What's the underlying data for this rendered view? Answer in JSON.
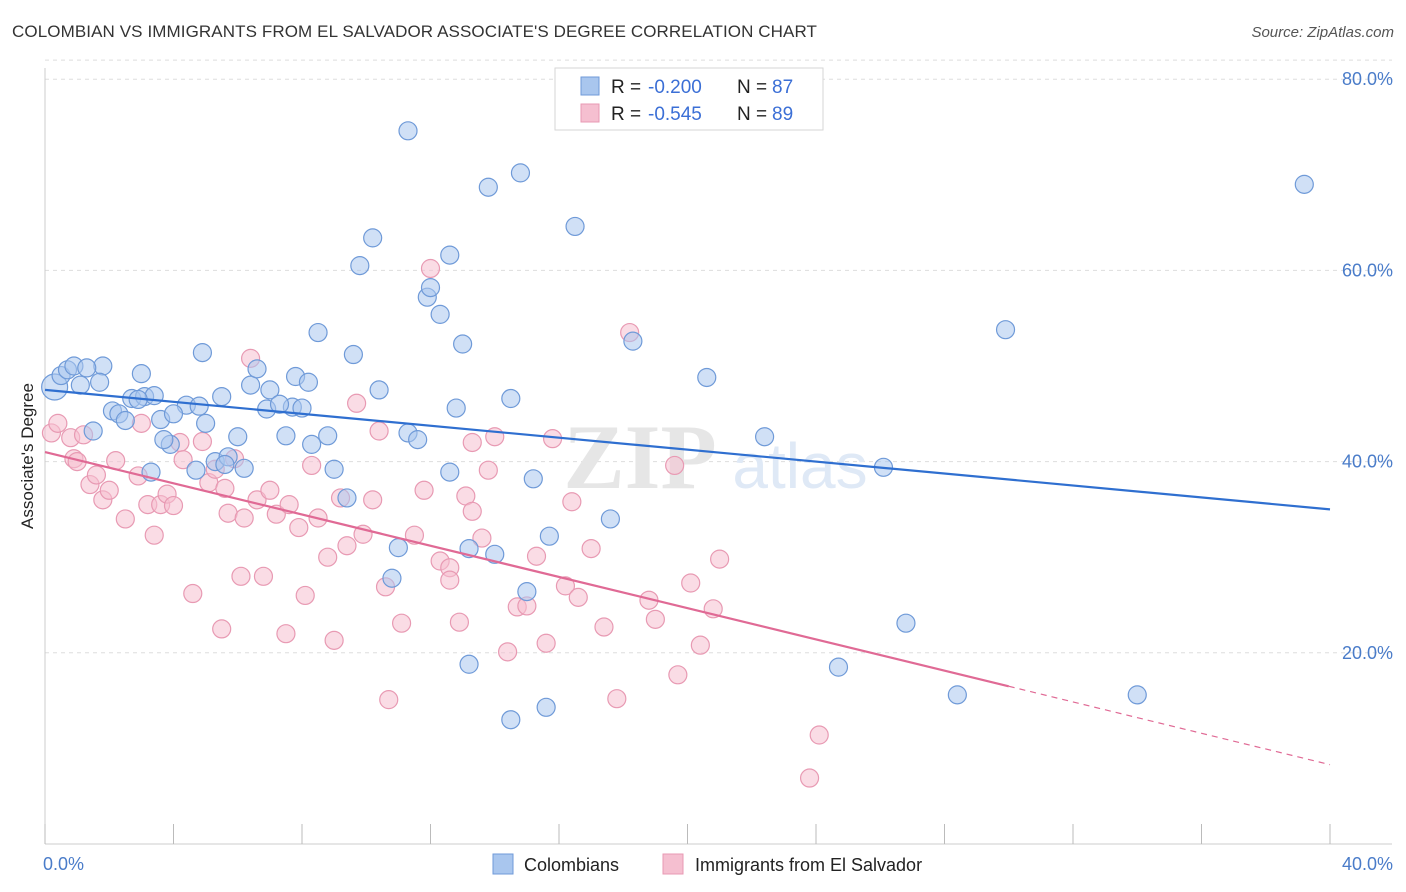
{
  "title": "COLOMBIAN VS IMMIGRANTS FROM EL SALVADOR ASSOCIATE'S DEGREE CORRELATION CHART",
  "source": "Source: ZipAtlas.com",
  "watermark": {
    "zip": "ZIP",
    "atlas": "atlas"
  },
  "colors": {
    "blue_fill": "#a9c6ee",
    "blue_stroke": "#6f9ad8",
    "blue_line": "#2f6fd0",
    "pink_fill": "#f5bfd0",
    "pink_stroke": "#e89ab3",
    "pink_line": "#e06a95",
    "grid": "#dddddd",
    "label": "#4a7cc9"
  },
  "legend_box": {
    "rows": [
      {
        "r_label": "R =",
        "r_value": "-0.200",
        "n_label": "N =",
        "n_value": "87"
      },
      {
        "r_label": "R =",
        "r_value": "-0.545",
        "n_label": "N =",
        "n_value": "89"
      }
    ]
  },
  "chart_data": {
    "type": "scatter",
    "title": "COLOMBIAN VS IMMIGRANTS FROM EL SALVADOR ASSOCIATE'S DEGREE CORRELATION CHART",
    "xlabel": "",
    "ylabel": "Associate's Degree",
    "xlim": [
      0,
      40
    ],
    "ylim": [
      0,
      85
    ],
    "x_tick_labels": [
      "0.0%",
      "40.0%"
    ],
    "y_tick_labels": [
      "20.0%",
      "40.0%",
      "60.0%",
      "80.0%"
    ],
    "y_ticks": [
      20,
      40,
      60,
      80
    ],
    "grid": true,
    "legend_position": "bottom-center",
    "series": [
      {
        "name": "Colombians",
        "r": -0.2,
        "n": 87,
        "trend": {
          "x0": 0,
          "y0": 47.5,
          "x1": 40,
          "y1": 35.0
        },
        "points": [
          [
            0.3,
            47.8
          ],
          [
            0.5,
            49.0
          ],
          [
            0.7,
            49.6
          ],
          [
            0.9,
            50.0
          ],
          [
            1.1,
            48.0
          ],
          [
            1.5,
            43.2
          ],
          [
            1.8,
            50.0
          ],
          [
            1.7,
            48.3
          ],
          [
            2.1,
            45.3
          ],
          [
            2.3,
            45.0
          ],
          [
            2.5,
            44.3
          ],
          [
            2.7,
            46.6
          ],
          [
            3.1,
            46.8
          ],
          [
            3.0,
            49.2
          ],
          [
            3.4,
            46.9
          ],
          [
            3.6,
            44.4
          ],
          [
            3.9,
            41.8
          ],
          [
            4.4,
            45.9
          ],
          [
            4.8,
            45.8
          ],
          [
            4.9,
            51.4
          ],
          [
            4.7,
            39.1
          ],
          [
            3.3,
            38.9
          ],
          [
            3.7,
            42.3
          ],
          [
            5.3,
            40.0
          ],
          [
            5.0,
            44.0
          ],
          [
            6.0,
            42.6
          ],
          [
            6.4,
            48.0
          ],
          [
            6.6,
            49.7
          ],
          [
            6.9,
            45.5
          ],
          [
            7.8,
            48.9
          ],
          [
            7.5,
            42.7
          ],
          [
            8.2,
            48.3
          ],
          [
            7.0,
            47.5
          ],
          [
            5.7,
            40.5
          ],
          [
            5.6,
            39.7
          ],
          [
            5.5,
            46.8
          ],
          [
            7.7,
            45.7
          ],
          [
            8.3,
            41.8
          ],
          [
            8.8,
            42.7
          ],
          [
            9.0,
            39.2
          ],
          [
            8.5,
            53.5
          ],
          [
            9.4,
            36.2
          ],
          [
            9.8,
            60.5
          ],
          [
            10.2,
            63.4
          ],
          [
            10.4,
            47.5
          ],
          [
            9.6,
            51.2
          ],
          [
            10.8,
            27.8
          ],
          [
            11.0,
            31.0
          ],
          [
            11.3,
            43.0
          ],
          [
            11.6,
            42.3
          ],
          [
            11.3,
            74.6
          ],
          [
            11.9,
            57.2
          ],
          [
            12.0,
            58.2
          ],
          [
            12.3,
            55.4
          ],
          [
            12.6,
            38.9
          ],
          [
            12.6,
            61.6
          ],
          [
            13.0,
            52.3
          ],
          [
            12.8,
            45.6
          ],
          [
            13.2,
            18.8
          ],
          [
            13.2,
            30.9
          ],
          [
            13.8,
            68.7
          ],
          [
            14.0,
            30.3
          ],
          [
            14.5,
            13.0
          ],
          [
            14.8,
            70.2
          ],
          [
            14.5,
            46.6
          ],
          [
            15.2,
            38.2
          ],
          [
            15.0,
            26.4
          ],
          [
            15.7,
            32.2
          ],
          [
            15.6,
            14.3
          ],
          [
            16.5,
            64.6
          ],
          [
            17.6,
            34.0
          ],
          [
            18.3,
            52.6
          ],
          [
            20.6,
            48.8
          ],
          [
            22.4,
            42.6
          ],
          [
            24.7,
            18.5
          ],
          [
            26.1,
            39.4
          ],
          [
            26.8,
            23.1
          ],
          [
            28.4,
            15.6
          ],
          [
            29.9,
            53.8
          ],
          [
            34.0,
            15.6
          ],
          [
            39.2,
            69.0
          ],
          [
            2.9,
            46.5
          ],
          [
            4.0,
            45.0
          ],
          [
            6.2,
            39.3
          ],
          [
            7.3,
            46.0
          ],
          [
            8.0,
            45.6
          ],
          [
            1.3,
            49.8
          ]
        ]
      },
      {
        "name": "Immigrants from El Salvador",
        "r": -0.545,
        "n": 89,
        "trend": {
          "x0": 0,
          "y0": 41.0,
          "x1": 30,
          "y1": 16.5,
          "x_dash_end": 40,
          "y_dash_end": 8.3
        },
        "points": [
          [
            0.2,
            43.0
          ],
          [
            0.4,
            44.0
          ],
          [
            0.8,
            42.5
          ],
          [
            0.9,
            40.3
          ],
          [
            1.0,
            40.0
          ],
          [
            1.2,
            42.8
          ],
          [
            1.4,
            37.6
          ],
          [
            1.6,
            38.6
          ],
          [
            1.8,
            36.0
          ],
          [
            2.0,
            37.0
          ],
          [
            2.2,
            40.1
          ],
          [
            2.5,
            34.0
          ],
          [
            2.9,
            38.5
          ],
          [
            3.0,
            44.0
          ],
          [
            3.2,
            35.5
          ],
          [
            3.4,
            32.3
          ],
          [
            3.6,
            35.5
          ],
          [
            3.8,
            36.6
          ],
          [
            4.0,
            35.4
          ],
          [
            4.2,
            42.0
          ],
          [
            4.3,
            40.2
          ],
          [
            4.6,
            26.2
          ],
          [
            4.9,
            42.1
          ],
          [
            5.1,
            37.8
          ],
          [
            5.3,
            39.2
          ],
          [
            5.5,
            22.5
          ],
          [
            5.6,
            37.2
          ],
          [
            5.7,
            34.6
          ],
          [
            5.9,
            40.3
          ],
          [
            6.1,
            28.0
          ],
          [
            6.2,
            34.1
          ],
          [
            6.4,
            50.8
          ],
          [
            6.6,
            36.0
          ],
          [
            6.8,
            28.0
          ],
          [
            7.0,
            37.0
          ],
          [
            7.2,
            34.5
          ],
          [
            7.5,
            22.0
          ],
          [
            7.6,
            35.5
          ],
          [
            7.9,
            33.1
          ],
          [
            8.1,
            26.0
          ],
          [
            8.3,
            39.6
          ],
          [
            8.5,
            34.1
          ],
          [
            8.8,
            30.0
          ],
          [
            9.0,
            21.3
          ],
          [
            9.2,
            36.2
          ],
          [
            9.4,
            31.2
          ],
          [
            9.7,
            46.1
          ],
          [
            9.9,
            32.4
          ],
          [
            10.2,
            36.0
          ],
          [
            10.4,
            43.2
          ],
          [
            10.6,
            26.9
          ],
          [
            10.7,
            15.1
          ],
          [
            11.1,
            23.1
          ],
          [
            11.5,
            32.3
          ],
          [
            11.8,
            37.0
          ],
          [
            12.0,
            60.2
          ],
          [
            12.3,
            29.6
          ],
          [
            12.6,
            28.9
          ],
          [
            12.6,
            27.6
          ],
          [
            12.9,
            23.2
          ],
          [
            13.1,
            36.4
          ],
          [
            13.3,
            34.8
          ],
          [
            13.3,
            42.0
          ],
          [
            13.6,
            32.0
          ],
          [
            13.8,
            39.1
          ],
          [
            14.0,
            42.6
          ],
          [
            14.4,
            20.1
          ],
          [
            14.7,
            24.8
          ],
          [
            15.0,
            24.9
          ],
          [
            15.3,
            30.1
          ],
          [
            15.6,
            21.0
          ],
          [
            15.8,
            42.4
          ],
          [
            16.2,
            27.0
          ],
          [
            16.4,
            35.8
          ],
          [
            16.6,
            25.8
          ],
          [
            17.0,
            30.9
          ],
          [
            17.4,
            22.7
          ],
          [
            18.2,
            53.5
          ],
          [
            17.8,
            15.2
          ],
          [
            18.8,
            25.5
          ],
          [
            19.0,
            23.5
          ],
          [
            19.6,
            39.6
          ],
          [
            19.7,
            17.7
          ],
          [
            20.1,
            27.3
          ],
          [
            20.4,
            20.8
          ],
          [
            20.8,
            24.6
          ],
          [
            21.0,
            29.8
          ],
          [
            24.1,
            11.4
          ],
          [
            23.8,
            6.9
          ]
        ]
      }
    ]
  },
  "bottom_legend": [
    "Colombians",
    "Immigrants from El Salvador"
  ]
}
